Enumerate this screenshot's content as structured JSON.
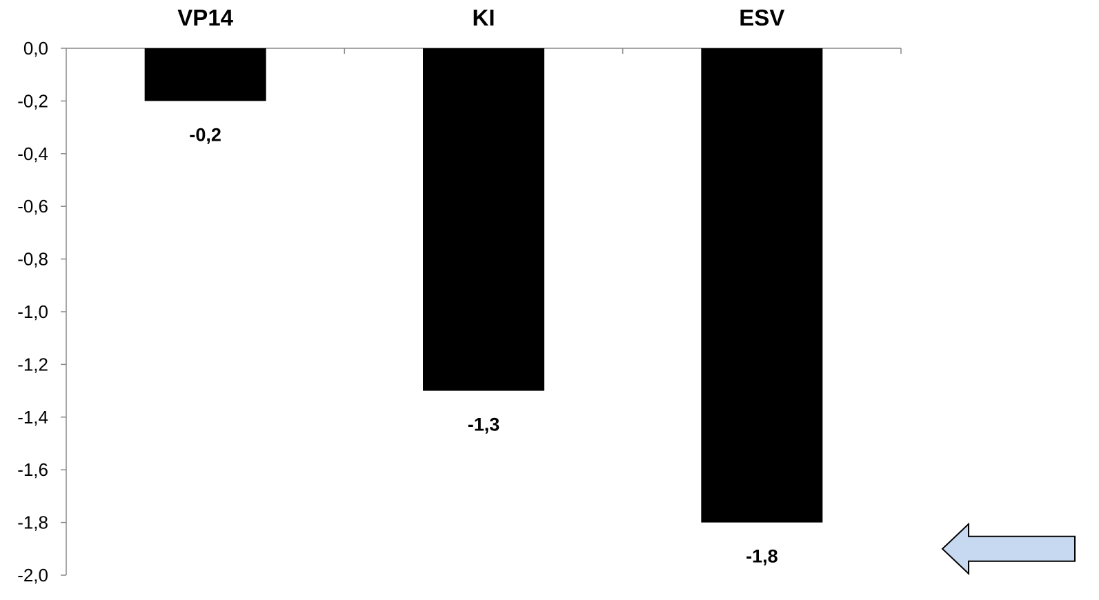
{
  "chart_data": {
    "type": "bar",
    "categories": [
      "VP14",
      "KI",
      "ESV"
    ],
    "values": [
      -0.2,
      -1.3,
      -1.8
    ],
    "data_labels": [
      "-0,2",
      "-1,3",
      "-1,8"
    ],
    "ylim": [
      -2.0,
      0.0
    ],
    "ytick_values": [
      0.0,
      -0.2,
      -0.4,
      -0.6,
      -0.8,
      -1.0,
      -1.2,
      -1.4,
      -1.6,
      -1.8,
      -2.0
    ],
    "ytick_labels": [
      "0,0",
      "-0,2",
      "-0,4",
      "-0,6",
      "-0,8",
      "-1,0",
      "-1,2",
      "-1,4",
      "-1,6",
      "-1,8",
      "-2,0"
    ],
    "category_axis_position": "top",
    "title": "",
    "xlabel": "",
    "ylabel": "",
    "grid": false,
    "legend": "none",
    "bar_color": "#000000",
    "axis_color": "#888888"
  },
  "annotations": {
    "arrow": {
      "direction": "left",
      "fill_color": "#c6d9f1",
      "stroke_color": "#000000",
      "points_at_value": -1.9
    }
  }
}
